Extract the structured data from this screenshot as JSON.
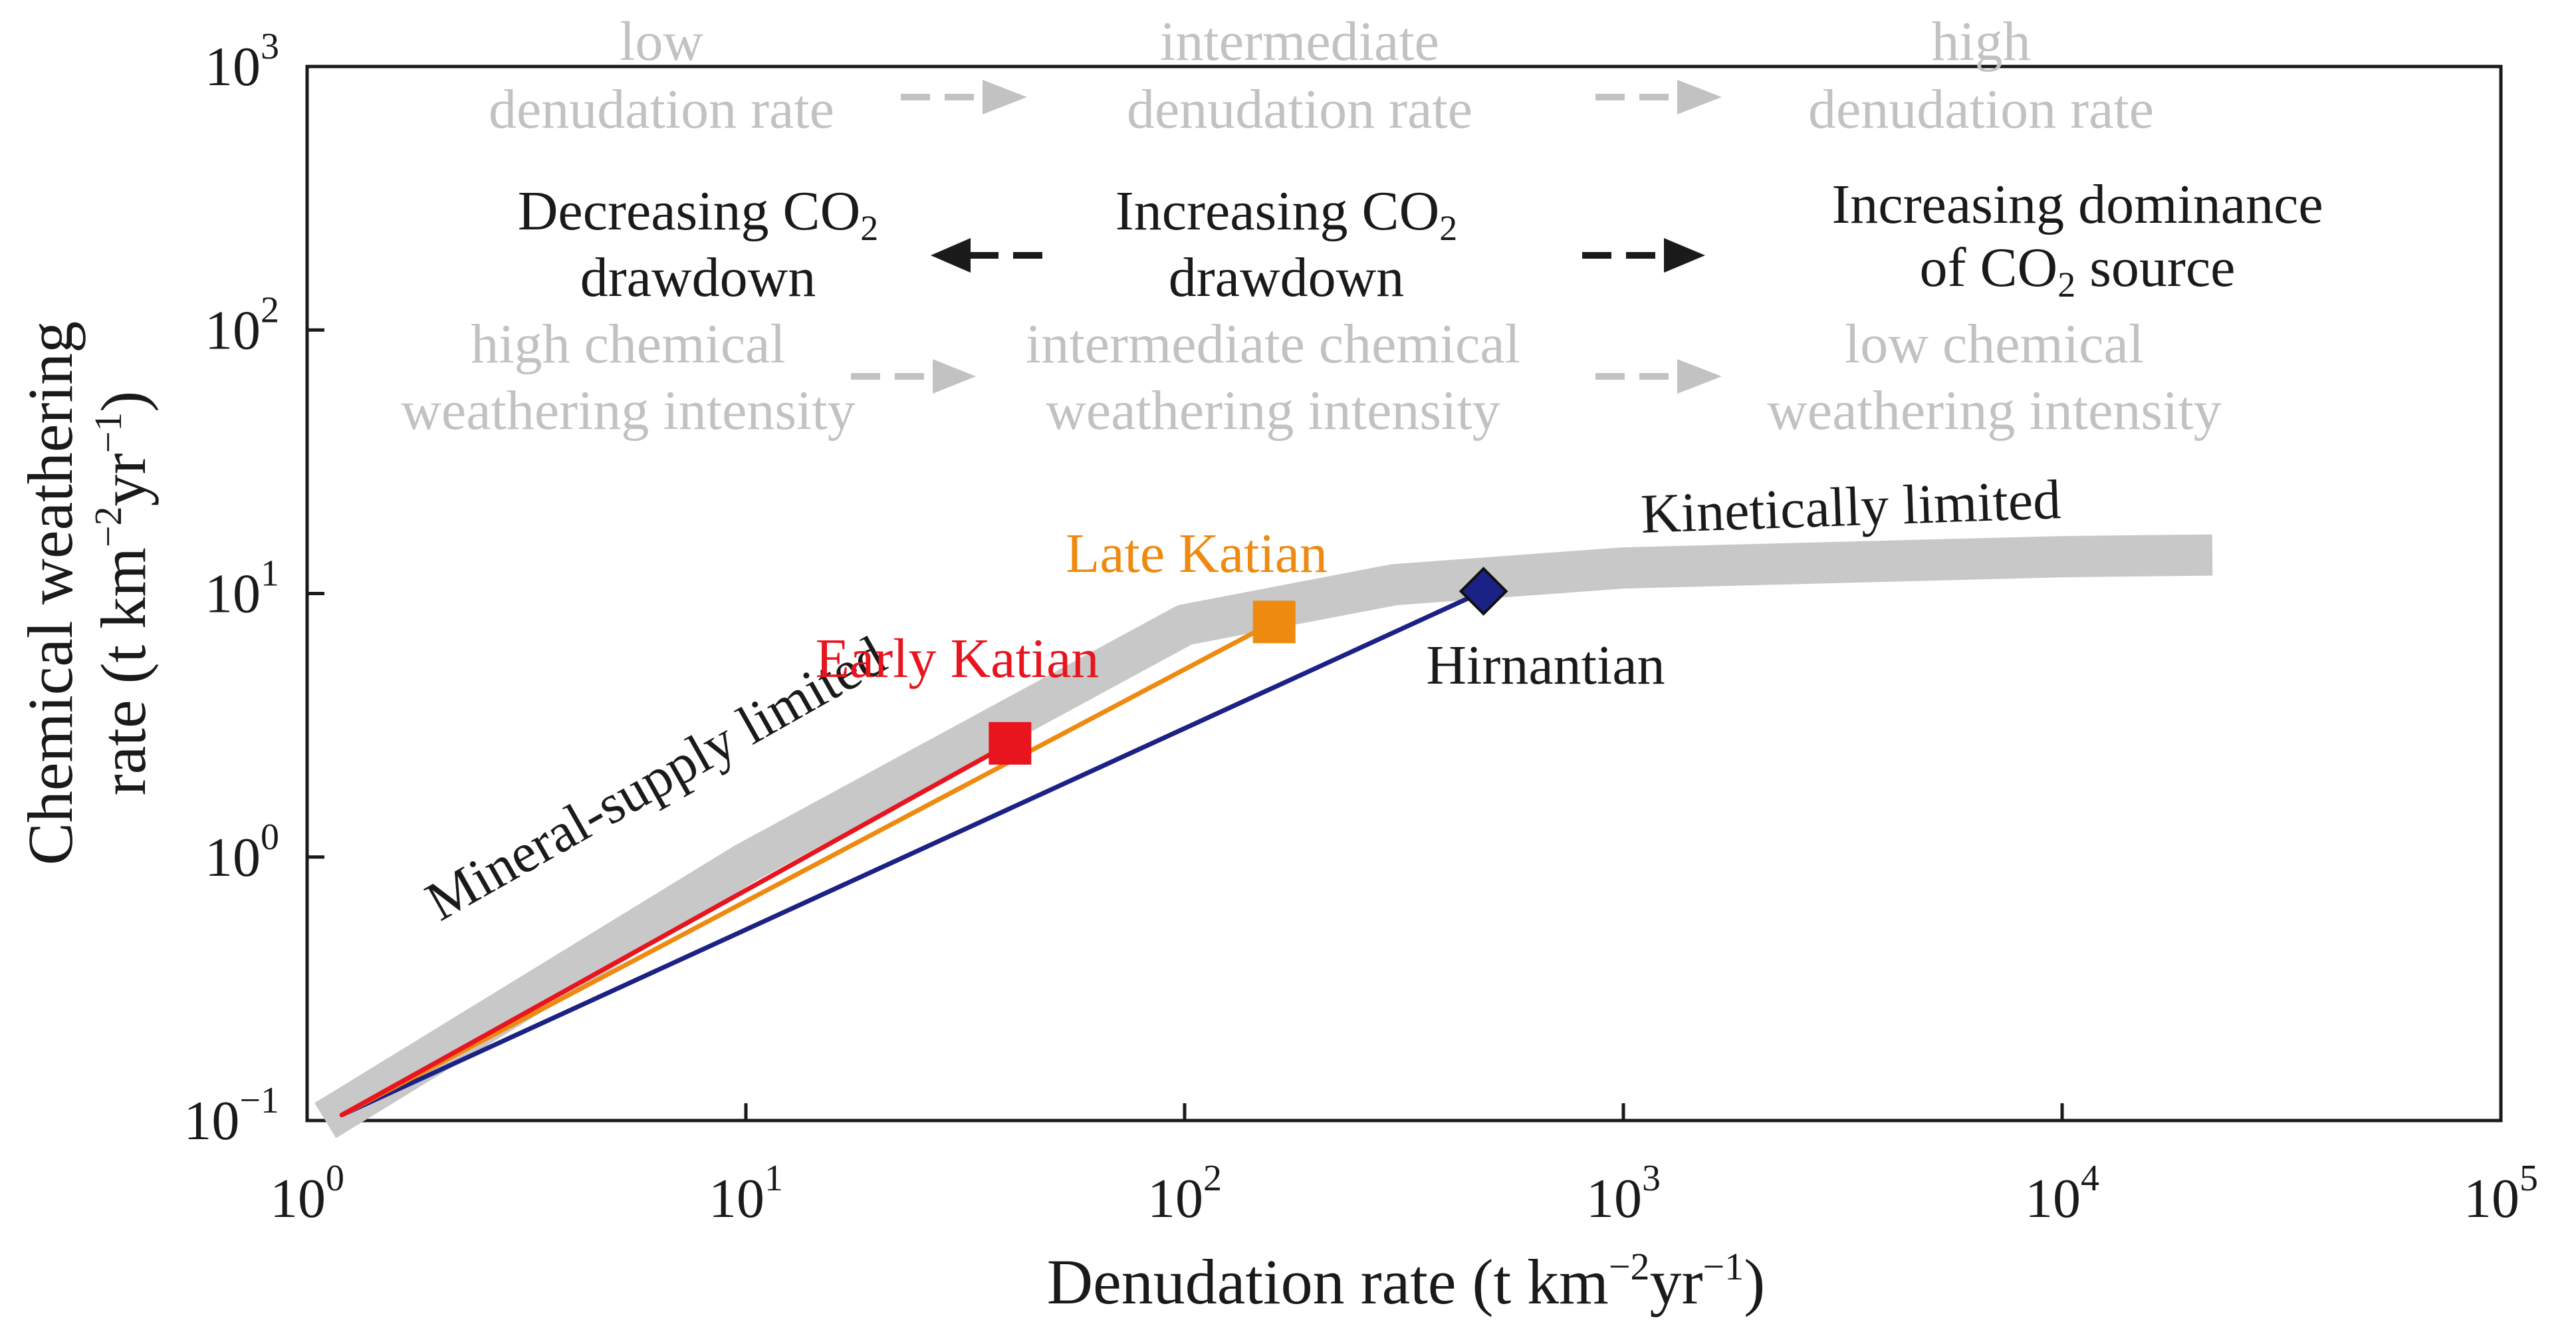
{
  "chart_data": {
    "type": "line",
    "title": "",
    "xlabel": {
      "base": "Denudation rate (t km",
      "e1": "−2",
      "mid": "yr",
      "e2": "−1",
      "end": ")"
    },
    "ylabel": {
      "line1": "Chemical weathering",
      "line2": {
        "base": "rate (t km",
        "e1": "−2",
        "mid": "yr",
        "e2": "−1",
        "end": ")"
      }
    },
    "x_scale": "log",
    "y_scale": "log",
    "xlim": [
      1,
      100000
    ],
    "ylim": [
      0.1,
      1000
    ],
    "x_ticks": [
      {
        "value": 1,
        "base": "10",
        "exp": "0"
      },
      {
        "value": 10,
        "base": "10",
        "exp": "1"
      },
      {
        "value": 100,
        "base": "10",
        "exp": "2"
      },
      {
        "value": 1000,
        "base": "10",
        "exp": "3"
      },
      {
        "value": 10000,
        "base": "10",
        "exp": "4"
      },
      {
        "value": 100000,
        "base": "10",
        "exp": "5"
      }
    ],
    "y_ticks": [
      {
        "value": 0.1,
        "base": "10",
        "exp": "−1"
      },
      {
        "value": 1,
        "base": "10",
        "exp": "0"
      },
      {
        "value": 10,
        "base": "10",
        "exp": "1"
      },
      {
        "value": 100,
        "base": "10",
        "exp": "2"
      },
      {
        "value": 1000,
        "base": "10",
        "exp": "3"
      }
    ],
    "envelope": {
      "color": "#c8c8c8",
      "x": [
        1.1,
        10,
        100,
        300,
        1000,
        10000,
        22000
      ],
      "y": [
        0.1,
        0.95,
        7.6,
        10.8,
        12.5,
        13.8,
        14.0
      ]
    },
    "series": [
      {
        "name": "Early Katian",
        "color": "#e8141e",
        "marker": "square",
        "x": [
          1.2,
          40
        ],
        "y": [
          0.105,
          2.7
        ]
      },
      {
        "name": "Late Katian",
        "color": "#ee8a10",
        "marker": "square",
        "x": [
          1.2,
          160
        ],
        "y": [
          0.105,
          7.8
        ]
      },
      {
        "name": "Hirnantian",
        "color": "#1c2185",
        "marker": "diamond",
        "x": [
          1.2,
          480
        ],
        "y": [
          0.105,
          10.2
        ]
      }
    ],
    "regime_labels": {
      "supply": "Mineral-supply limited",
      "kinetic": "Kinetically limited"
    },
    "header_rows": {
      "denudation": {
        "low": [
          "low",
          "denudation rate"
        ],
        "intermediate": [
          "intermediate",
          "denudation rate"
        ],
        "high": [
          "high",
          "denudation rate"
        ]
      },
      "co2": {
        "decreasing": {
          "l1a": "Decreasing CO",
          "l1sub": "2",
          "l2": "drawdown"
        },
        "increasing": {
          "l1a": "Increasing CO",
          "l1sub": "2",
          "l2": "drawdown"
        },
        "source": {
          "l1": "Increasing dominance",
          "l2a": "of CO",
          "l2sub": "2",
          "l2b": " source"
        }
      },
      "intensity": {
        "high": [
          "high chemical",
          "weathering intensity"
        ],
        "intermediate": [
          "intermediate chemical",
          "weathering intensity"
        ],
        "low": [
          "low chemical",
          "weathering intensity"
        ]
      }
    },
    "colors": {
      "frame": "#1a1a1a",
      "grey_text": "#c2c2c2",
      "grey_arrow": "#c2c2c2",
      "black_arrow": "#1a1a1a"
    }
  }
}
